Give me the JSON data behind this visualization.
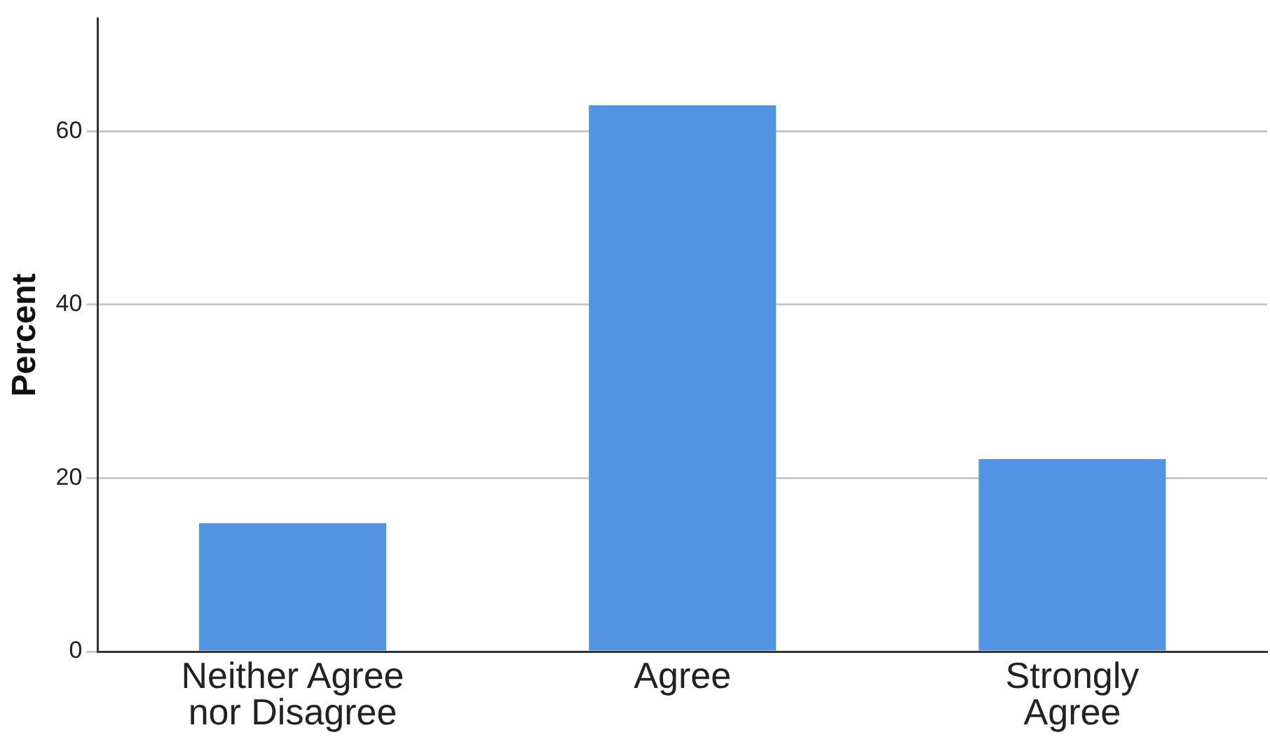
{
  "chart_data": {
    "type": "bar",
    "ylabel": "Percent",
    "categories": [
      "Neither Agree nor Disagree",
      "Agree",
      "Strongly Agree"
    ],
    "values": [
      14.8,
      63.0,
      22.2
    ],
    "color": "#5294e2",
    "ylim": [
      0,
      73
    ],
    "yticks": [
      0,
      20,
      40,
      60
    ],
    "grid": "y"
  }
}
